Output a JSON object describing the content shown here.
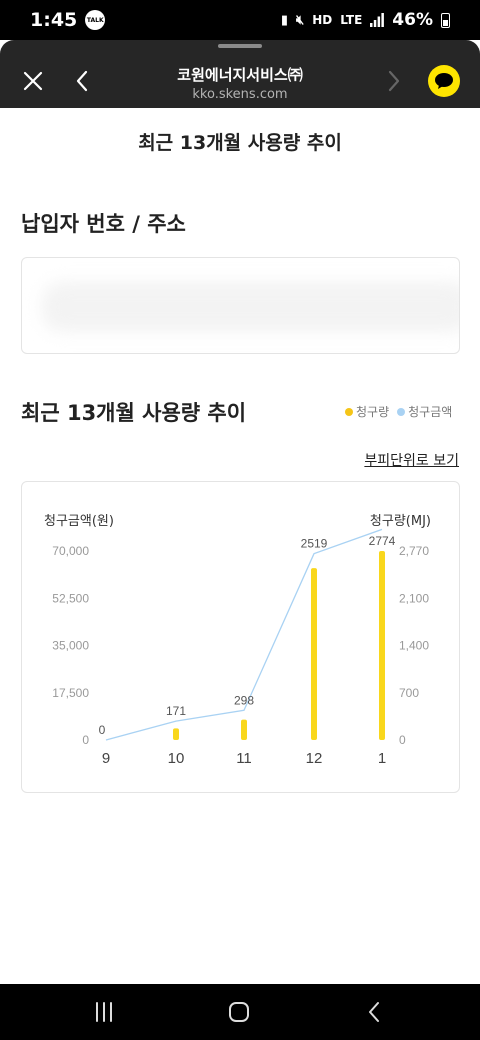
{
  "status_bar": {
    "time": "1:45",
    "talk_badge": "TALK",
    "hd_label": "HD",
    "lte_label": "LTE",
    "battery_pct": "46%",
    "icons": [
      "battery-saver-icon",
      "mute-icon",
      "signal-icon",
      "battery-icon"
    ]
  },
  "browser": {
    "title": "코원에너지서비스㈜",
    "url": "kko.skens.com",
    "talk_color": "#fee500"
  },
  "page": {
    "heading": "최근 13개월 사용량 추이",
    "address_section_title": "납입자 번호 / 주소",
    "usage_section_title": "최근 13개월 사용량 추이",
    "view_toggle_link": "부피단위로 보기"
  },
  "legend": {
    "usage_label": "청구량",
    "amount_label": "청구금액",
    "usage_color": "#f5c518",
    "amount_color": "#a9d2f3"
  },
  "chart_data": {
    "type": "bar",
    "categories": [
      "9",
      "10",
      "11",
      "12",
      "1"
    ],
    "series": [
      {
        "name": "청구량",
        "chart_kind": "bar",
        "axis": "right",
        "values": [
          0,
          171,
          298,
          2519,
          2774
        ],
        "color": "#f9d71c"
      },
      {
        "name": "청구금액",
        "chart_kind": "line",
        "axis": "left",
        "values": [
          0,
          7000,
          11000,
          69000,
          78000
        ],
        "color": "#a9d2f3"
      }
    ],
    "data_labels": [
      "0",
      "171",
      "298",
      "2519",
      "2774"
    ],
    "ylabel_left": "청구금액(원)",
    "ylabel_right": "청구량(MJ)",
    "left_ticks": [
      "0",
      "17,500",
      "35,000",
      "52,500",
      "70,000"
    ],
    "left_range": [
      0,
      70000
    ],
    "right_ticks": [
      "0",
      "700",
      "1,400",
      "2,100",
      "2,770"
    ],
    "right_range": [
      0,
      2770
    ],
    "grid": false
  }
}
